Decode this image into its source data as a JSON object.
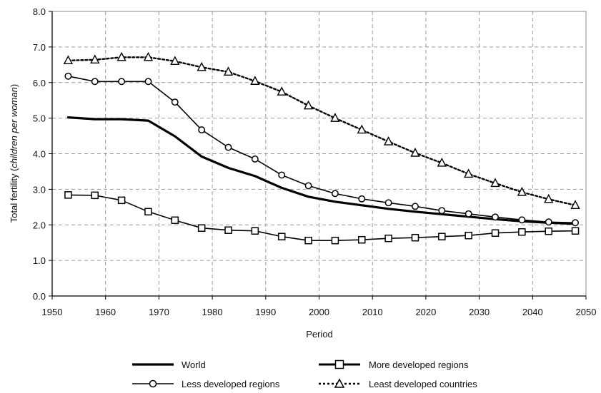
{
  "chart_data": {
    "type": "line",
    "xlabel": "Period",
    "ylabel_prefix": "Total fertility (",
    "ylabel_italic": "children per woman",
    "ylabel_suffix": ")",
    "xlim": [
      1950,
      2050
    ],
    "ylim": [
      0,
      8
    ],
    "grid": true,
    "x_ticks": [
      "1950",
      "1960",
      "1970",
      "1980",
      "1990",
      "2000",
      "2010",
      "2020",
      "2030",
      "2040",
      "2050"
    ],
    "y_ticks": [
      "0.0",
      "1.0",
      "2.0",
      "3.0",
      "4.0",
      "5.0",
      "6.0",
      "7.0",
      "8.0"
    ],
    "x": [
      1953,
      1958,
      1963,
      1968,
      1973,
      1978,
      1983,
      1988,
      1993,
      1998,
      2003,
      2008,
      2013,
      2018,
      2023,
      2028,
      2033,
      2038,
      2043,
      2048
    ],
    "series": [
      {
        "name": "World",
        "style": "thick",
        "color": "#000000",
        "values": [
          5.02,
          4.97,
          4.97,
          4.93,
          4.49,
          3.92,
          3.6,
          3.37,
          3.04,
          2.79,
          2.65,
          2.55,
          2.45,
          2.37,
          2.3,
          2.23,
          2.16,
          2.1,
          2.06,
          2.03
        ]
      },
      {
        "name": "More developed regions",
        "style": "square",
        "color": "#000000",
        "values": [
          2.84,
          2.83,
          2.69,
          2.37,
          2.13,
          1.91,
          1.85,
          1.83,
          1.67,
          1.56,
          1.56,
          1.58,
          1.62,
          1.64,
          1.67,
          1.7,
          1.77,
          1.8,
          1.82,
          1.83
        ]
      },
      {
        "name": "Less developed regions",
        "style": "circle",
        "color": "#000000",
        "values": [
          6.18,
          6.03,
          6.03,
          6.03,
          5.45,
          4.67,
          4.18,
          3.85,
          3.4,
          3.1,
          2.88,
          2.73,
          2.62,
          2.52,
          2.4,
          2.31,
          2.22,
          2.14,
          2.08,
          2.06
        ]
      },
      {
        "name": "Least developed countries",
        "style": "triangle-dotted",
        "color": "#000000",
        "values": [
          6.62,
          6.64,
          6.71,
          6.71,
          6.6,
          6.43,
          6.3,
          6.04,
          5.74,
          5.35,
          5.0,
          4.67,
          4.34,
          4.02,
          3.74,
          3.43,
          3.17,
          2.92,
          2.72,
          2.55
        ]
      }
    ]
  }
}
